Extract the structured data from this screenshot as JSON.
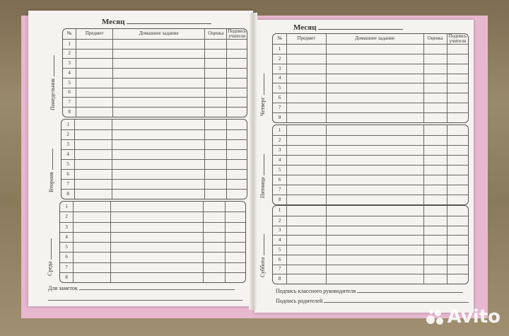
{
  "header_cols": [
    "№",
    "Предмет",
    "Домашнее задание",
    "Оценка",
    "Подпись учителя"
  ],
  "rows": [
    "1",
    "2",
    "3",
    "4",
    "5",
    "6",
    "7",
    "8"
  ],
  "left_page": {
    "month_label": "Месяц",
    "days": [
      "Понедельник",
      "Вторник",
      "Среда"
    ],
    "notes_label": "Для заметок"
  },
  "right_page": {
    "month_label": "Месяц",
    "days": [
      "Четверг",
      "Пятница",
      "Суббота"
    ],
    "teacher_signature_label": "Подпись классного руководителя",
    "parents_signature_label": "Подпись родителей"
  },
  "watermark": "Avito"
}
